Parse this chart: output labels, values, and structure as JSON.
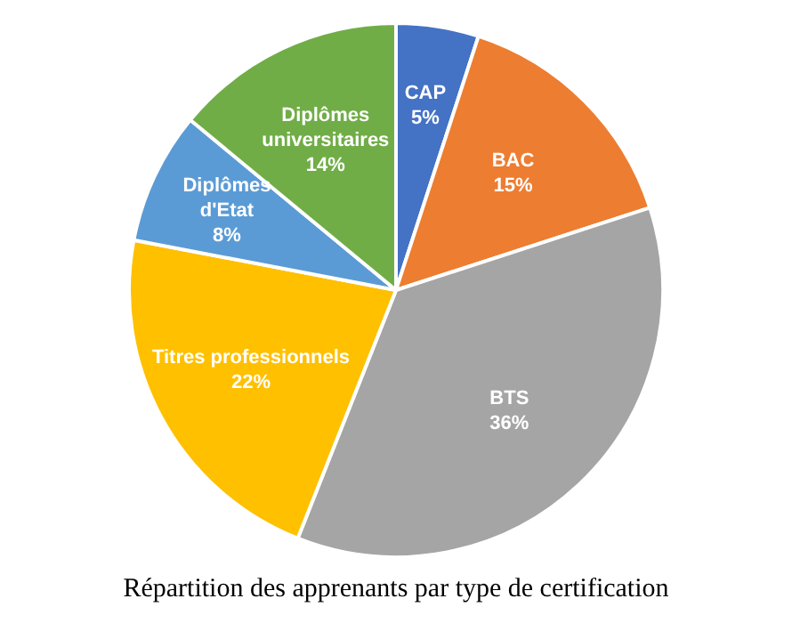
{
  "chart_data": {
    "type": "pie",
    "title": "Répartition des apprenants par type de certification",
    "categories": [
      "CAP",
      "BAC",
      "BTS",
      "Titres professionnels",
      "Diplômes d'Etat",
      "Diplômes universitaires"
    ],
    "values": [
      5,
      15,
      36,
      22,
      8,
      14
    ],
    "colors": [
      "#4472c4",
      "#ed7d31",
      "#a5a5a5",
      "#ffc000",
      "#5b9bd5",
      "#70ad47"
    ],
    "value_labels": [
      "5%",
      "15%",
      "36%",
      "22%",
      "8%",
      "14%"
    ],
    "legend": false
  }
}
